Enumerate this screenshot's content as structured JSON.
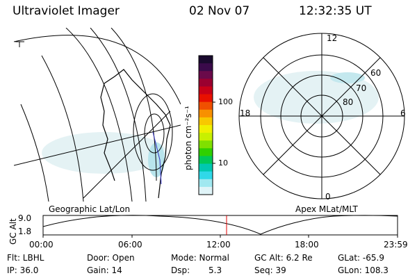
{
  "header": {
    "instrument": "Ultraviolet Imager",
    "date": "02 Nov 07",
    "time": "12:32:35 UT"
  },
  "colorbar": {
    "unit_label": "photon cm⁻²s⁻¹",
    "tick_labels": [
      "100",
      "10"
    ],
    "colors": [
      "#1a0a2e",
      "#3a0a4a",
      "#6a0a4a",
      "#9a0030",
      "#c80018",
      "#e81000",
      "#f05000",
      "#f89000",
      "#f8c800",
      "#f0f000",
      "#c8f000",
      "#80e000",
      "#30d000",
      "#00c858",
      "#00c8b0",
      "#30d8e8",
      "#a0e8f0",
      "#e0f4f8"
    ]
  },
  "geo_panel": {
    "label": "Geographic Lat/Lon"
  },
  "polar_panel": {
    "label": "Apex MLat/MLT",
    "mlt_labels": {
      "top": "12",
      "left": "18",
      "right": "6",
      "bottom": "0"
    },
    "lat_labels": [
      "80",
      "70",
      "60"
    ]
  },
  "timeline": {
    "axis_label": "GC Alt",
    "y_ticks": [
      "9.0",
      "1.8"
    ],
    "x_ticks": [
      "00:00",
      "06:00",
      "12:00",
      "18:00",
      "23:59"
    ],
    "marker_color": "#e00000"
  },
  "info": {
    "flt": "Flt: LBHL",
    "ip": "IP: 36.0",
    "door": "Door: Open",
    "gain": "Gain: 14",
    "mode": "Mode: Normal",
    "dsp_label": "Dsp:",
    "dsp_value": "5.3",
    "gc_alt": "GC Alt: 6.2 Re",
    "seq": "Seq: 39",
    "glat": "GLat: -65.9",
    "glon": "GLon: 108.3"
  }
}
